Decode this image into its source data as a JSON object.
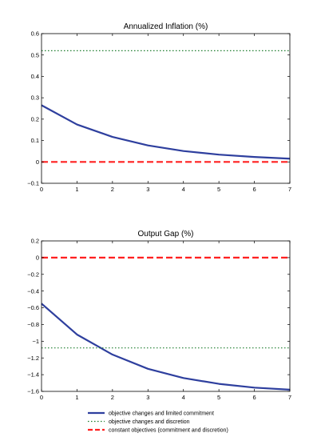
{
  "chart_data": [
    {
      "type": "line",
      "title": "Annualized Inflation (%)",
      "xlabel": "",
      "ylabel": "",
      "xlim": [
        0,
        7
      ],
      "ylim": [
        -0.1,
        0.6
      ],
      "xticks": [
        "0",
        "1",
        "2",
        "3",
        "4",
        "5",
        "6",
        "7"
      ],
      "yticks": [
        "−0.1",
        "0",
        "0.1",
        "0.2",
        "0.3",
        "0.4",
        "0.5",
        "0.6"
      ],
      "x": [
        0,
        1,
        2,
        3,
        4,
        5,
        6,
        7
      ],
      "grid": false,
      "series": [
        {
          "name": "objective changes and limited commitment",
          "values": [
            0.265,
            0.175,
            0.117,
            0.077,
            0.051,
            0.034,
            0.023,
            0.015
          ],
          "color": "#2e3f9e",
          "style": "solid"
        },
        {
          "name": "objective changes and discretion",
          "values": [
            0.52,
            0.52,
            0.52,
            0.52,
            0.52,
            0.52,
            0.52,
            0.52
          ],
          "color": "#1e7d2e",
          "style": "dotted"
        },
        {
          "name": "constant objectives (commitment and discretion)",
          "values": [
            0,
            0,
            0,
            0,
            0,
            0,
            0,
            0
          ],
          "color": "#ff2020",
          "style": "dashed"
        }
      ]
    },
    {
      "type": "line",
      "title": "Output Gap (%)",
      "xlabel": "",
      "ylabel": "",
      "xlim": [
        0,
        7
      ],
      "ylim": [
        -1.6,
        0.2
      ],
      "xticks": [
        "0",
        "1",
        "2",
        "3",
        "4",
        "5",
        "6",
        "7"
      ],
      "yticks": [
        "−1.6",
        "−1.4",
        "−1.2",
        "−1",
        "−0.8",
        "−0.6",
        "−0.4",
        "−0.2",
        "0",
        "0.2"
      ],
      "x": [
        0,
        1,
        2,
        3,
        4,
        5,
        6,
        7
      ],
      "grid": false,
      "series": [
        {
          "name": "objective changes and limited commitment",
          "values": [
            -0.55,
            -0.92,
            -1.16,
            -1.33,
            -1.44,
            -1.51,
            -1.555,
            -1.58
          ],
          "color": "#2e3f9e",
          "style": "solid"
        },
        {
          "name": "objective changes and discretion",
          "values": [
            -1.08,
            -1.08,
            -1.08,
            -1.08,
            -1.08,
            -1.08,
            -1.08,
            -1.08
          ],
          "color": "#1e7d2e",
          "style": "dotted"
        },
        {
          "name": "constant objectives (commitment and discretion)",
          "values": [
            0,
            0,
            0,
            0,
            0,
            0,
            0,
            0
          ],
          "color": "#ff2020",
          "style": "dashed"
        }
      ]
    }
  ],
  "legend": {
    "placement": "bottom",
    "items": [
      {
        "label": "objective changes and limited commitment",
        "color": "#2e3f9e",
        "style": "solid"
      },
      {
        "label": "objective changes and discretion",
        "color": "#1e7d2e",
        "style": "dotted"
      },
      {
        "label": "constant objectives (commitment and discretion)",
        "color": "#ff2020",
        "style": "dashed"
      }
    ]
  }
}
